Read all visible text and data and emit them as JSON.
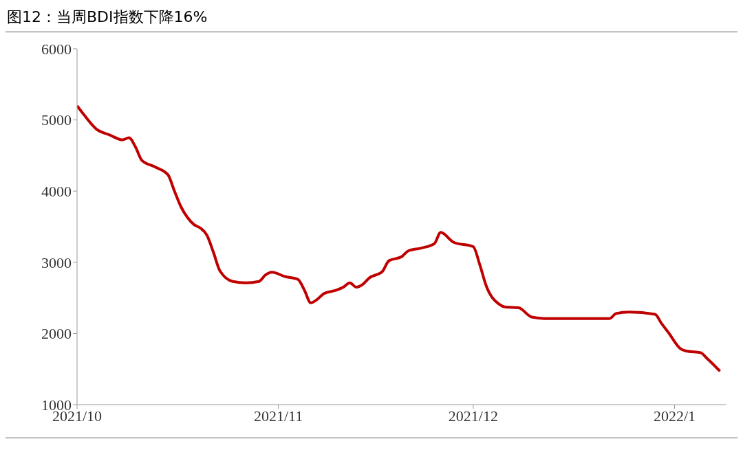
{
  "chart_data": {
    "type": "line",
    "title": "图12：当周BDI指数下降16%",
    "x": [
      "2021-10-01",
      "2021-10-02",
      "2021-10-04",
      "2021-10-06",
      "2021-10-08",
      "2021-10-09",
      "2021-10-10",
      "2021-10-11",
      "2021-10-13",
      "2021-10-15",
      "2021-10-16",
      "2021-10-17",
      "2021-10-18",
      "2021-10-19",
      "2021-10-20",
      "2021-10-21",
      "2021-10-22",
      "2021-10-23",
      "2021-10-25",
      "2021-10-27",
      "2021-10-29",
      "2021-10-30",
      "2021-10-31",
      "2021-11-02",
      "2021-11-04",
      "2021-11-05",
      "2021-11-06",
      "2021-11-07",
      "2021-11-08",
      "2021-11-10",
      "2021-11-11",
      "2021-11-12",
      "2021-11-13",
      "2021-11-14",
      "2021-11-15",
      "2021-11-17",
      "2021-11-18",
      "2021-11-20",
      "2021-11-21",
      "2021-11-23",
      "2021-11-25",
      "2021-11-26",
      "2021-11-28",
      "2021-12-01",
      "2021-12-02",
      "2021-12-03",
      "2021-12-05",
      "2021-12-06",
      "2021-12-08",
      "2021-12-10",
      "2021-12-12",
      "2021-12-17",
      "2021-12-22",
      "2021-12-23",
      "2021-12-25",
      "2021-12-29",
      "2021-12-30",
      "2021-12-31",
      "2022-01-02",
      "2022-01-03",
      "2022-01-05",
      "2022-01-06",
      "2022-01-08"
    ],
    "series": [
      {
        "color": "#c00000",
        "values": [
          5200,
          5080,
          4870,
          4790,
          4720,
          4750,
          4620,
          4430,
          4340,
          4230,
          4000,
          3780,
          3630,
          3530,
          3480,
          3380,
          3140,
          2880,
          2730,
          2710,
          2730,
          2820,
          2860,
          2800,
          2760,
          2610,
          2430,
          2480,
          2560,
          2610,
          2650,
          2710,
          2650,
          2690,
          2780,
          2870,
          3020,
          3080,
          3160,
          3200,
          3260,
          3420,
          3280,
          3220,
          2970,
          2670,
          2410,
          2370,
          2360,
          2230,
          2210,
          2210,
          2210,
          2280,
          2300,
          2270,
          2140,
          2020,
          1780,
          1750,
          1730,
          1650,
          1470
        ]
      }
    ],
    "xlim": [
      "2021-10-01",
      "2022-01-09"
    ],
    "xticks": [
      {
        "value": "2021-10-01",
        "label": "2021/10"
      },
      {
        "value": "2021-11-01",
        "label": "2021/11"
      },
      {
        "value": "2021-12-01",
        "label": "2021/12"
      },
      {
        "value": "2022-01-01",
        "label": "2022/1"
      }
    ],
    "ylim": [
      1000,
      6000
    ],
    "yticks": [
      1000,
      2000,
      3000,
      4000,
      5000,
      6000
    ],
    "grid": false,
    "legend": false,
    "marker": "none",
    "line_style": "solid"
  }
}
